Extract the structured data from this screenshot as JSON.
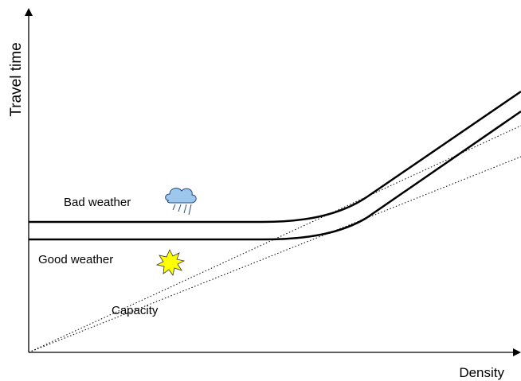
{
  "axes": {
    "y_label": "Travel time",
    "x_label": "Density"
  },
  "annotations": {
    "bad_weather": "Bad weather",
    "good_weather": "Good weather",
    "capacity": "Capacity"
  }
}
